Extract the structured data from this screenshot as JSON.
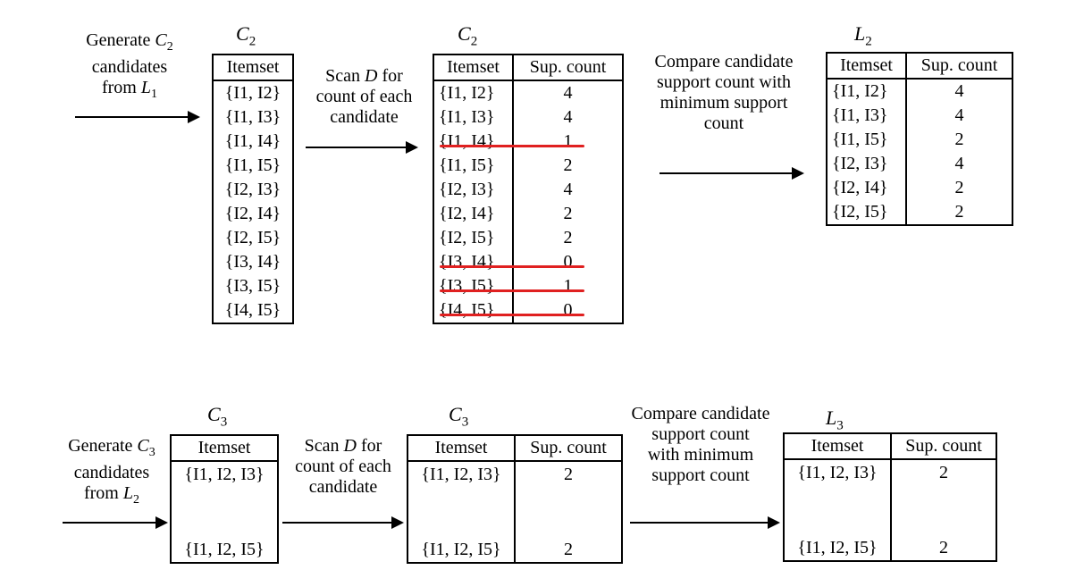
{
  "step1": {
    "gen_label": {
      "line1": "Generate ",
      "c": "C",
      "csub": "2",
      "line2": "candidates",
      "line3": "from ",
      "l": "L",
      "lsub": "1"
    },
    "c2_title": {
      "name": "C",
      "sub": "2"
    },
    "c2_header": "Itemset",
    "c2_items": [
      "{I1, I2}",
      "{I1, I3}",
      "{I1, I4}",
      "{I1, I5}",
      "{I2, I3}",
      "{I2, I4}",
      "{I2, I5}",
      "{I3, I4}",
      "{I3, I5}",
      "{I4, I5}"
    ],
    "scan_label": {
      "line1a": "Scan ",
      "d": "D",
      "line1b": " for",
      "line2": "count of each",
      "line3": "candidate"
    },
    "c2count_title": {
      "name": "C",
      "sub": "2"
    },
    "c2count_headers": [
      "Itemset",
      "Sup. count"
    ],
    "c2count_rows": [
      {
        "itemset": "{I1, I2}",
        "count": "4",
        "pruned": false
      },
      {
        "itemset": "{I1, I3}",
        "count": "4",
        "pruned": false
      },
      {
        "itemset": "{I1, I4}",
        "count": "1",
        "pruned": true
      },
      {
        "itemset": "{I1, I5}",
        "count": "2",
        "pruned": false
      },
      {
        "itemset": "{I2, I3}",
        "count": "4",
        "pruned": false
      },
      {
        "itemset": "{I2, I4}",
        "count": "2",
        "pruned": false
      },
      {
        "itemset": "{I2, I5}",
        "count": "2",
        "pruned": false
      },
      {
        "itemset": "{I3, I4}",
        "count": "0",
        "pruned": true
      },
      {
        "itemset": "{I3, I5}",
        "count": "1",
        "pruned": true
      },
      {
        "itemset": "{I4, I5}",
        "count": "0",
        "pruned": true
      }
    ],
    "compare_label": [
      "Compare candidate",
      "support count with",
      "minimum support",
      "count"
    ],
    "l2_title": {
      "name": "L",
      "sub": "2"
    },
    "l2_headers": [
      "Itemset",
      "Sup. count"
    ],
    "l2_rows": [
      {
        "itemset": "{I1, I2}",
        "count": "4"
      },
      {
        "itemset": "{I1, I3}",
        "count": "4"
      },
      {
        "itemset": "{I1, I5}",
        "count": "2"
      },
      {
        "itemset": "{I2, I3}",
        "count": "4"
      },
      {
        "itemset": "{I2, I4}",
        "count": "2"
      },
      {
        "itemset": "{I2, I5}",
        "count": "2"
      }
    ]
  },
  "step2": {
    "gen_label": {
      "line1": "Generate ",
      "c": "C",
      "csub": "3",
      "line2": "candidates",
      "line3": "from ",
      "l": "L",
      "lsub": "2"
    },
    "c3_title": {
      "name": "C",
      "sub": "3"
    },
    "c3_header": "Itemset",
    "c3_items": [
      "{I1, I2, I3}",
      "{I1, I2, I5}"
    ],
    "scan_label": {
      "line1a": "Scan ",
      "d": "D",
      "line1b": " for",
      "line2": "count of each",
      "line3": "candidate"
    },
    "c3count_title": {
      "name": "C",
      "sub": "3"
    },
    "c3count_headers": [
      "Itemset",
      "Sup. count"
    ],
    "c3count_rows": [
      {
        "itemset": "{I1, I2, I3}",
        "count": "2"
      },
      {
        "itemset": "{I1, I2, I5}",
        "count": "2"
      }
    ],
    "compare_label": [
      "Compare candidate",
      "support count",
      "with minimum",
      "support count"
    ],
    "l3_title": {
      "name": "L",
      "sub": "3"
    },
    "l3_headers": [
      "Itemset",
      "Sup. count"
    ],
    "l3_rows": [
      {
        "itemset": "{I1, I2, I3}",
        "count": "2"
      },
      {
        "itemset": "{I1, I2, I5}",
        "count": "2"
      }
    ]
  },
  "colors": {
    "strike": "#e02020"
  }
}
